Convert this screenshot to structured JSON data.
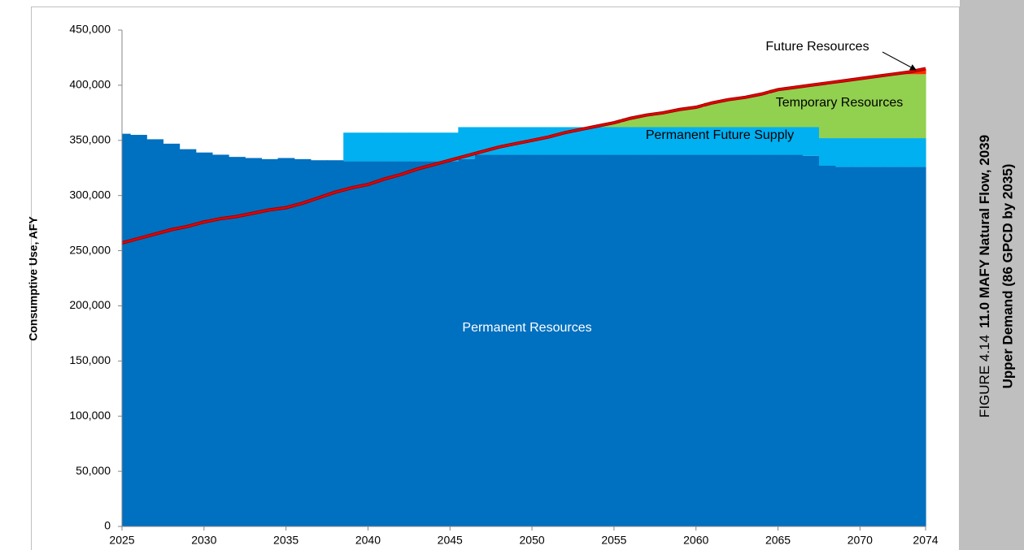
{
  "chart_data": {
    "type": "stacked_step_area",
    "figure_number": "FIGURE 4.14",
    "title": "11.0 MAFY Natural Flow, 2039",
    "subtitle": "Upper Demand (86 GPCD by 2035)",
    "y_label": "Consumptive Use, AFY",
    "x": [
      2025,
      2026,
      2027,
      2028,
      2029,
      2030,
      2031,
      2032,
      2033,
      2034,
      2035,
      2036,
      2037,
      2038,
      2039,
      2040,
      2041,
      2042,
      2043,
      2044,
      2045,
      2046,
      2047,
      2048,
      2049,
      2050,
      2051,
      2052,
      2053,
      2054,
      2055,
      2056,
      2057,
      2058,
      2059,
      2060,
      2061,
      2062,
      2063,
      2064,
      2065,
      2066,
      2067,
      2068,
      2069,
      2070,
      2071,
      2072,
      2073,
      2074
    ],
    "series": [
      {
        "name": "Permanent Resources",
        "color": "#0070c0",
        "values": [
          356000,
          355000,
          351000,
          347000,
          342000,
          339000,
          337000,
          335000,
          334000,
          333000,
          334000,
          333000,
          332000,
          332000,
          331000,
          331000,
          331000,
          331000,
          331000,
          331000,
          331000,
          333000,
          337000,
          337000,
          337000,
          337000,
          337000,
          337000,
          337000,
          337000,
          337000,
          337000,
          337000,
          337000,
          337000,
          337000,
          337000,
          337000,
          337000,
          337000,
          337000,
          337000,
          336000,
          327000,
          326000,
          326000,
          326000,
          326000,
          326000,
          326000
        ]
      },
      {
        "name": "Permanent Future Supply",
        "color": "#00b0f0",
        "values": [
          0,
          0,
          0,
          0,
          0,
          0,
          0,
          0,
          0,
          0,
          0,
          0,
          0,
          0,
          26000,
          26000,
          26000,
          26000,
          26000,
          26000,
          26000,
          29000,
          25000,
          25000,
          25000,
          25000,
          25000,
          25000,
          25000,
          25000,
          25000,
          25000,
          25000,
          25000,
          25000,
          25000,
          25000,
          25000,
          25000,
          25000,
          25000,
          25000,
          26000,
          25000,
          26000,
          26000,
          26000,
          26000,
          26000,
          26000
        ]
      },
      {
        "name": "Temporary Resources",
        "color": "#92d050",
        "values": [
          0,
          0,
          0,
          0,
          0,
          0,
          0,
          0,
          0,
          0,
          0,
          0,
          0,
          0,
          0,
          0,
          0,
          0,
          0,
          0,
          0,
          0,
          0,
          0,
          0,
          0,
          0,
          0,
          0,
          1000,
          4000,
          8000,
          11000,
          13000,
          16000,
          18000,
          22000,
          25000,
          27000,
          30000,
          34000,
          36000,
          38000,
          50000,
          52000,
          54000,
          56000,
          58000,
          58000,
          58000
        ]
      },
      {
        "name": "Future Resources",
        "color": "#ff2a00",
        "values": [
          0,
          0,
          0,
          0,
          0,
          0,
          0,
          0,
          0,
          0,
          0,
          0,
          0,
          0,
          0,
          0,
          0,
          0,
          0,
          0,
          0,
          0,
          0,
          0,
          0,
          0,
          0,
          0,
          0,
          0,
          0,
          0,
          0,
          0,
          0,
          0,
          0,
          0,
          0,
          0,
          0,
          0,
          0,
          0,
          0,
          0,
          0,
          0,
          2000,
          5000
        ]
      }
    ],
    "demand": {
      "color": "#e00000",
      "values": [
        257000,
        261000,
        265000,
        269000,
        272000,
        276000,
        279000,
        281000,
        284000,
        287000,
        289000,
        293000,
        298000,
        303000,
        307000,
        310000,
        315000,
        319000,
        324000,
        328000,
        332000,
        336000,
        340000,
        344000,
        347000,
        350000,
        353000,
        357000,
        360000,
        363000,
        366000,
        370000,
        373000,
        375000,
        378000,
        380000,
        384000,
        387000,
        389000,
        392000,
        396000,
        398000,
        400000,
        402000,
        404000,
        406000,
        408000,
        410000,
        412000,
        415000
      ]
    },
    "annotations": [
      "Permanent Resources",
      "Permanent Future Supply",
      "Temporary Resources",
      "Future Resources"
    ],
    "xlim": [
      2025,
      2074
    ],
    "xticks": [
      2025,
      2030,
      2035,
      2040,
      2045,
      2050,
      2055,
      2060,
      2065,
      2070,
      2074
    ],
    "ylim": [
      0,
      450000
    ],
    "yticks": [
      0,
      {
        "value": 50000,
        "label": "50,000"
      },
      {
        "value": 100000,
        "label": "100,000"
      },
      {
        "value": 150000,
        "label": "150,000"
      },
      {
        "value": 200000,
        "label": "200,000"
      },
      {
        "value": 250000,
        "label": "250,000"
      },
      {
        "value": 300000,
        "label": "300,000"
      },
      {
        "value": 350000,
        "label": "350,000"
      },
      {
        "value": 400000,
        "label": "400,000"
      },
      {
        "value": 450000,
        "label": "450,000"
      }
    ]
  }
}
